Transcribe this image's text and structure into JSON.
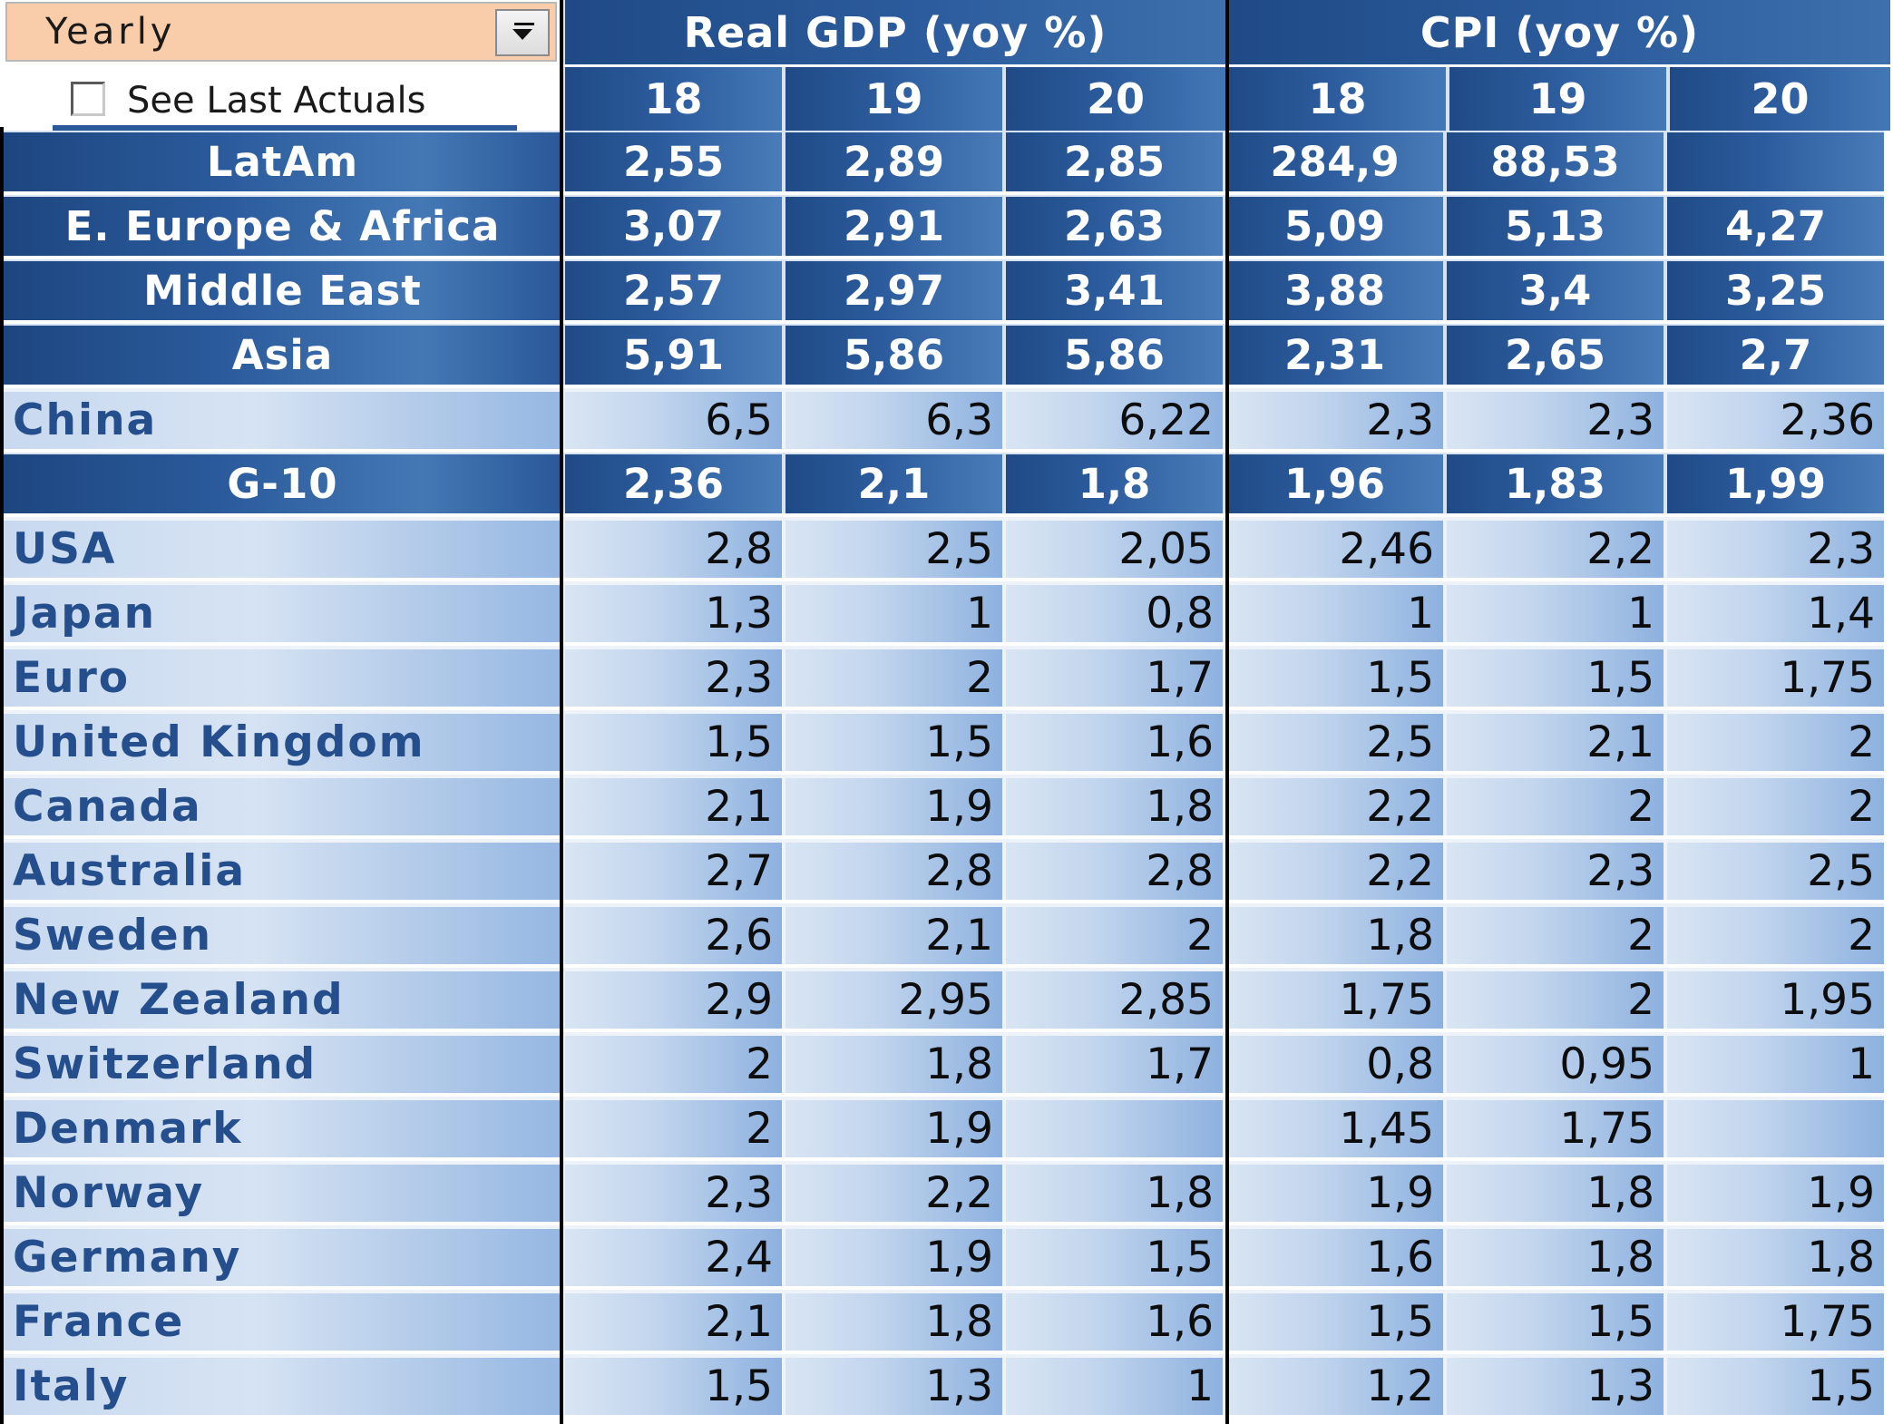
{
  "controls": {
    "period_selected": "Yearly",
    "checkbox_label": "See Last Actuals",
    "checkbox_checked": false
  },
  "header": {
    "group1": "Real GDP (yoy %)",
    "group2": "CPI (yoy %)",
    "years": [
      "18",
      "19",
      "20",
      "18",
      "19",
      "20"
    ]
  },
  "rows": [
    {
      "label": "LatAm",
      "style": "dark",
      "values": [
        "2,55",
        "2,89",
        "2,85",
        "284,9",
        "88,53",
        ""
      ]
    },
    {
      "label": "E. Europe & Africa",
      "style": "dark",
      "values": [
        "3,07",
        "2,91",
        "2,63",
        "5,09",
        "5,13",
        "4,27"
      ]
    },
    {
      "label": "Middle East",
      "style": "dark",
      "values": [
        "2,57",
        "2,97",
        "3,41",
        "3,88",
        "3,4",
        "3,25"
      ]
    },
    {
      "label": "Asia",
      "style": "dark",
      "values": [
        "5,91",
        "5,86",
        "5,86",
        "2,31",
        "2,65",
        "2,7"
      ]
    },
    {
      "label": "China",
      "style": "light",
      "values": [
        "6,5",
        "6,3",
        "6,22",
        "2,3",
        "2,3",
        "2,36"
      ]
    },
    {
      "label": "G-10",
      "style": "dark",
      "values": [
        "2,36",
        "2,1",
        "1,8",
        "1,96",
        "1,83",
        "1,99"
      ]
    },
    {
      "label": "USA",
      "style": "light",
      "values": [
        "2,8",
        "2,5",
        "2,05",
        "2,46",
        "2,2",
        "2,3"
      ]
    },
    {
      "label": "Japan",
      "style": "light",
      "values": [
        "1,3",
        "1",
        "0,8",
        "1",
        "1",
        "1,4"
      ]
    },
    {
      "label": "Euro",
      "style": "light",
      "values": [
        "2,3",
        "2",
        "1,7",
        "1,5",
        "1,5",
        "1,75"
      ]
    },
    {
      "label": "United  Kingdom",
      "style": "light",
      "values": [
        "1,5",
        "1,5",
        "1,6",
        "2,5",
        "2,1",
        "2"
      ]
    },
    {
      "label": "Canada",
      "style": "light",
      "values": [
        "2,1",
        "1,9",
        "1,8",
        "2,2",
        "2",
        "2"
      ]
    },
    {
      "label": "Australia",
      "style": "light",
      "values": [
        "2,7",
        "2,8",
        "2,8",
        "2,2",
        "2,3",
        "2,5"
      ]
    },
    {
      "label": "Sweden",
      "style": "light",
      "values": [
        "2,6",
        "2,1",
        "2",
        "1,8",
        "2",
        "2"
      ]
    },
    {
      "label": "New Zealand",
      "style": "light",
      "values": [
        "2,9",
        "2,95",
        "2,85",
        "1,75",
        "2",
        "1,95"
      ]
    },
    {
      "label": "Switzerland",
      "style": "light",
      "values": [
        "2",
        "1,8",
        "1,7",
        "0,8",
        "0,95",
        "1"
      ]
    },
    {
      "label": "Denmark",
      "style": "light",
      "values": [
        "2",
        "1,9",
        "",
        "1,45",
        "1,75",
        ""
      ]
    },
    {
      "label": "Norway",
      "style": "light",
      "values": [
        "2,3",
        "2,2",
        "1,8",
        "1,9",
        "1,8",
        "1,9"
      ]
    },
    {
      "label": "Germany",
      "style": "light",
      "values": [
        "2,4",
        "1,9",
        "1,5",
        "1,6",
        "1,8",
        "1,8"
      ]
    },
    {
      "label": "France",
      "style": "light",
      "values": [
        "2,1",
        "1,8",
        "1,6",
        "1,5",
        "1,5",
        "1,75"
      ]
    },
    {
      "label": "Italy",
      "style": "light",
      "values": [
        "1,5",
        "1,3",
        "1",
        "1,2",
        "1,3",
        "1,5"
      ]
    }
  ]
}
